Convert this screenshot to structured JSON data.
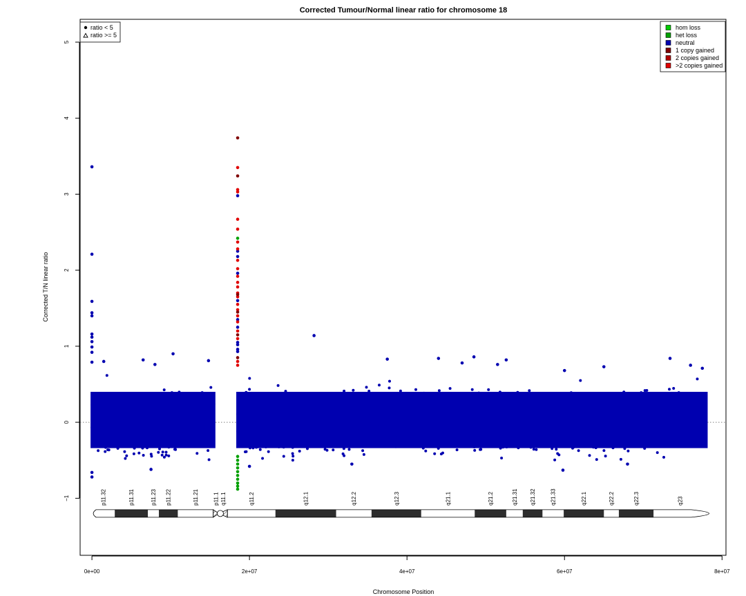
{
  "chart_data": {
    "type": "scatter",
    "title": "Corrected Tumour/Normal linear ratio for chromosome  18",
    "xlabel": "Chromosome Position",
    "ylabel": "Corrected T/N linear ratio",
    "xlim": [
      -1500000,
      80500000
    ],
    "ylim": [
      -1.75,
      5.3
    ],
    "x_ticks": [
      {
        "value": 0,
        "label": "0e+00"
      },
      {
        "value": 20000000,
        "label": "2e+07"
      },
      {
        "value": 40000000,
        "label": "4e+07"
      },
      {
        "value": 60000000,
        "label": "6e+07"
      },
      {
        "value": 80000000,
        "label": "8e+07"
      }
    ],
    "y_ticks": [
      {
        "value": -1,
        "label": "−1"
      },
      {
        "value": 0,
        "label": "0"
      },
      {
        "value": 1,
        "label": "1"
      },
      {
        "value": 2,
        "label": "2"
      },
      {
        "value": 3,
        "label": "3"
      },
      {
        "value": 4,
        "label": "4"
      },
      {
        "value": 5,
        "label": "5"
      }
    ],
    "reference_line": {
      "y": 0,
      "style": "dotted"
    },
    "point_shape_legend": {
      "position": "top-left",
      "entries": [
        {
          "symbol": "filled-circle",
          "label": "ratio < 5"
        },
        {
          "symbol": "open-triangle",
          "label": "ratio >= 5"
        }
      ]
    },
    "color_legend": {
      "position": "top-right",
      "entries": [
        {
          "label": "hom loss",
          "color": "#00cc00"
        },
        {
          "label": "het loss",
          "color": "#00a000"
        },
        {
          "label": "neutral",
          "color": "#0000b0"
        },
        {
          "label": "1 copy gained",
          "color": "#800000"
        },
        {
          "label": "2 copies gained",
          "color": "#b00000"
        },
        {
          "label": ">2 copies gained",
          "color": "#e00000"
        }
      ]
    },
    "neutral_bands": [
      {
        "x_start": 0,
        "x_end": 15500000,
        "y_mean": 0.0,
        "y_sd": 0.17
      },
      {
        "x_start": 18500000,
        "x_end": 78000000,
        "y_mean": 0.0,
        "y_sd": 0.17
      }
    ],
    "series": [
      {
        "name": "neutral",
        "color": "#0000b0",
        "points": [
          [
            0,
            3.36
          ],
          [
            0,
            2.21
          ],
          [
            0,
            1.59
          ],
          [
            0,
            1.44
          ],
          [
            0,
            1.4
          ],
          [
            0,
            1.16
          ],
          [
            0,
            1.12
          ],
          [
            0,
            1.06
          ],
          [
            0,
            0.99
          ],
          [
            0,
            0.92
          ],
          [
            0,
            0.79
          ],
          [
            0,
            -0.66
          ],
          [
            0,
            -0.72
          ],
          [
            1500000,
            0.8
          ],
          [
            6500000,
            0.82
          ],
          [
            8000000,
            0.76
          ],
          [
            10300000,
            0.9
          ],
          [
            14800000,
            0.81
          ],
          [
            7500000,
            -0.62
          ],
          [
            18500000,
            2.98
          ],
          [
            18500000,
            2.25
          ],
          [
            18500000,
            2.18
          ],
          [
            18500000,
            1.96
          ],
          [
            18500000,
            1.6
          ],
          [
            18500000,
            1.35
          ],
          [
            18500000,
            1.25
          ],
          [
            18500000,
            1.05
          ],
          [
            18500000,
            1.02
          ],
          [
            18500000,
            0.96
          ],
          [
            18500000,
            0.93
          ],
          [
            28200000,
            1.14
          ],
          [
            37500000,
            0.83
          ],
          [
            44000000,
            0.84
          ],
          [
            47000000,
            0.78
          ],
          [
            48500000,
            0.86
          ],
          [
            51500000,
            0.76
          ],
          [
            52600000,
            0.82
          ],
          [
            60000000,
            0.68
          ],
          [
            65000000,
            0.73
          ],
          [
            73400000,
            0.84
          ],
          [
            76000000,
            0.75
          ],
          [
            77500000,
            0.71
          ],
          [
            20000000,
            -0.58
          ],
          [
            33000000,
            -0.55
          ],
          [
            59800000,
            -0.63
          ],
          [
            68000000,
            -0.55
          ]
        ]
      },
      {
        "name": ">2 copies gained",
        "color": "#e00000",
        "points": [
          [
            18500000,
            3.35
          ],
          [
            18500000,
            3.06
          ],
          [
            18500000,
            3.03
          ],
          [
            18500000,
            2.67
          ],
          [
            18500000,
            2.54
          ],
          [
            18500000,
            2.37
          ],
          [
            18500000,
            2.28
          ],
          [
            18500000,
            2.13
          ],
          [
            18500000,
            2.02
          ],
          [
            18500000,
            1.92
          ],
          [
            18500000,
            1.84
          ],
          [
            18500000,
            1.78
          ],
          [
            18500000,
            1.7
          ],
          [
            18500000,
            1.65
          ],
          [
            18500000,
            1.55
          ],
          [
            18500000,
            1.48
          ],
          [
            18500000,
            1.4
          ],
          [
            18500000,
            1.32
          ],
          [
            18500000,
            1.2
          ],
          [
            18500000,
            1.1
          ],
          [
            18500000,
            0.8
          ],
          [
            18500000,
            0.75
          ]
        ]
      },
      {
        "name": "1 copy gained",
        "color": "#800000",
        "points": [
          [
            18500000,
            3.74
          ],
          [
            18500000,
            3.24
          ],
          [
            18500000,
            1.68
          ],
          [
            18500000,
            1.45
          ],
          [
            18500000,
            1.15
          ],
          [
            18500000,
            0.85
          ]
        ]
      },
      {
        "name": "het loss",
        "color": "#00a000",
        "points": [
          [
            18500000,
            2.42
          ],
          [
            18500000,
            -0.45
          ],
          [
            18500000,
            -0.5
          ],
          [
            18500000,
            -0.55
          ],
          [
            18500000,
            -0.6
          ],
          [
            18500000,
            -0.65
          ],
          [
            18500000,
            -0.7
          ],
          [
            18500000,
            -0.75
          ],
          [
            18500000,
            -0.8
          ],
          [
            18500000,
            -0.84
          ],
          [
            18500000,
            -0.88
          ]
        ]
      }
    ],
    "ideogram": {
      "y": -1.2,
      "bands": [
        {
          "start": 0,
          "end": 2900000,
          "stain": "gneg",
          "label": "p11.32"
        },
        {
          "start": 2900000,
          "end": 7100000,
          "stain": "gpos",
          "label": "p11.31"
        },
        {
          "start": 7100000,
          "end": 8500000,
          "stain": "gneg",
          "label": "p11.23"
        },
        {
          "start": 8500000,
          "end": 10900000,
          "stain": "gpos",
          "label": "p11.22"
        },
        {
          "start": 10900000,
          "end": 15400000,
          "stain": "gneg",
          "label": "p11.21"
        },
        {
          "start": 15400000,
          "end": 16100000,
          "stain": "acen",
          "label": "p11.1"
        },
        {
          "start": 16100000,
          "end": 17200000,
          "stain": "stalk",
          "label": "q11.1"
        },
        {
          "start": 17200000,
          "end": 23300000,
          "stain": "gneg",
          "label": "q11.2"
        },
        {
          "start": 23300000,
          "end": 31000000,
          "stain": "gpos",
          "label": "q12.1"
        },
        {
          "start": 31000000,
          "end": 35500000,
          "stain": "gneg",
          "label": "q12.2"
        },
        {
          "start": 35500000,
          "end": 41800000,
          "stain": "gpos",
          "label": "q12.3"
        },
        {
          "start": 41800000,
          "end": 48600000,
          "stain": "gneg",
          "label": "q21.1"
        },
        {
          "start": 48600000,
          "end": 52600000,
          "stain": "gpos",
          "label": "q21.2"
        },
        {
          "start": 52600000,
          "end": 54700000,
          "stain": "gneg",
          "label": "q21.31"
        },
        {
          "start": 54700000,
          "end": 57200000,
          "stain": "gpos",
          "label": "q21.32"
        },
        {
          "start": 57200000,
          "end": 59900000,
          "stain": "gneg",
          "label": "q21.33"
        },
        {
          "start": 59900000,
          "end": 65000000,
          "stain": "gpos",
          "label": "q22.1"
        },
        {
          "start": 65000000,
          "end": 66900000,
          "stain": "gneg",
          "label": "q22.2"
        },
        {
          "start": 66900000,
          "end": 71300000,
          "stain": "gpos",
          "label": "q22.3"
        },
        {
          "start": 71300000,
          "end": 78000000,
          "stain": "gneg",
          "label": "q23"
        }
      ]
    }
  }
}
